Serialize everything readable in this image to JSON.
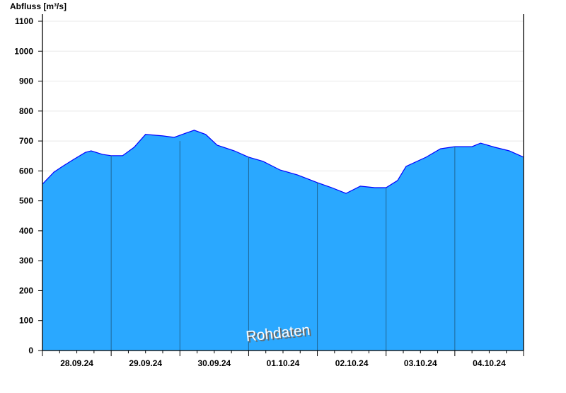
{
  "chart_data": {
    "type": "area",
    "title": "",
    "ylabel": "Abfluss [m³/s]",
    "xlabel": "",
    "ylim": [
      0,
      1100
    ],
    "yticks": [
      0,
      100,
      200,
      300,
      400,
      500,
      600,
      700,
      800,
      900,
      1000,
      1100
    ],
    "xlim": [
      "28.09.24 00:00",
      "05.10.24 00:00"
    ],
    "xtick_labels": [
      "28.09.24",
      "29.09.24",
      "30.09.24",
      "01.10.24",
      "02.10.24",
      "03.10.24",
      "04.10.24"
    ],
    "grid": true,
    "watermark": "Rohdaten",
    "colors": {
      "fill": "#2aa8ff",
      "line": "#0000ff",
      "day_separator": "#1f6796",
      "grid": "#e8e8e8"
    },
    "points": [
      [
        "28.09.24 00:00",
        556
      ],
      [
        "28.09.24 04:00",
        596
      ],
      [
        "28.09.24 07:00",
        615
      ],
      [
        "28.09.24 11:00",
        639
      ],
      [
        "28.09.24 15:00",
        662
      ],
      [
        "28.09.24 17:00",
        667
      ],
      [
        "28.09.24 21:00",
        655
      ],
      [
        "29.09.24 00:00",
        651
      ],
      [
        "29.09.24 04:00",
        651
      ],
      [
        "29.09.24 08:00",
        679
      ],
      [
        "29.09.24 12:00",
        722
      ],
      [
        "29.09.24 18:00",
        717
      ],
      [
        "29.09.24 22:00",
        712
      ],
      [
        "30.09.24 02:00",
        726
      ],
      [
        "30.09.24 05:00",
        736
      ],
      [
        "30.09.24 09:00",
        722
      ],
      [
        "30.09.24 13:00",
        686
      ],
      [
        "30.09.24 19:00",
        667
      ],
      [
        "01.10.24 00:00",
        646
      ],
      [
        "01.10.24 05:00",
        632
      ],
      [
        "01.10.24 11:00",
        603
      ],
      [
        "01.10.24 17:00",
        587
      ],
      [
        "02.10.24 00:00",
        561
      ],
      [
        "02.10.24 05:00",
        544
      ],
      [
        "02.10.24 10:00",
        525
      ],
      [
        "02.10.24 15:00",
        549
      ],
      [
        "02.10.24 20:00",
        544
      ],
      [
        "03.10.24 00:00",
        544
      ],
      [
        "03.10.24 04:00",
        568
      ],
      [
        "03.10.24 07:00",
        615
      ],
      [
        "03.10.24 14:00",
        646
      ],
      [
        "03.10.24 19:00",
        674
      ],
      [
        "04.10.24 00:00",
        681
      ],
      [
        "04.10.24 06:00",
        681
      ],
      [
        "04.10.24 09:00",
        693
      ],
      [
        "04.10.24 14:00",
        679
      ],
      [
        "04.10.24 19:00",
        667
      ],
      [
        "05.10.24 00:00",
        646
      ]
    ]
  }
}
